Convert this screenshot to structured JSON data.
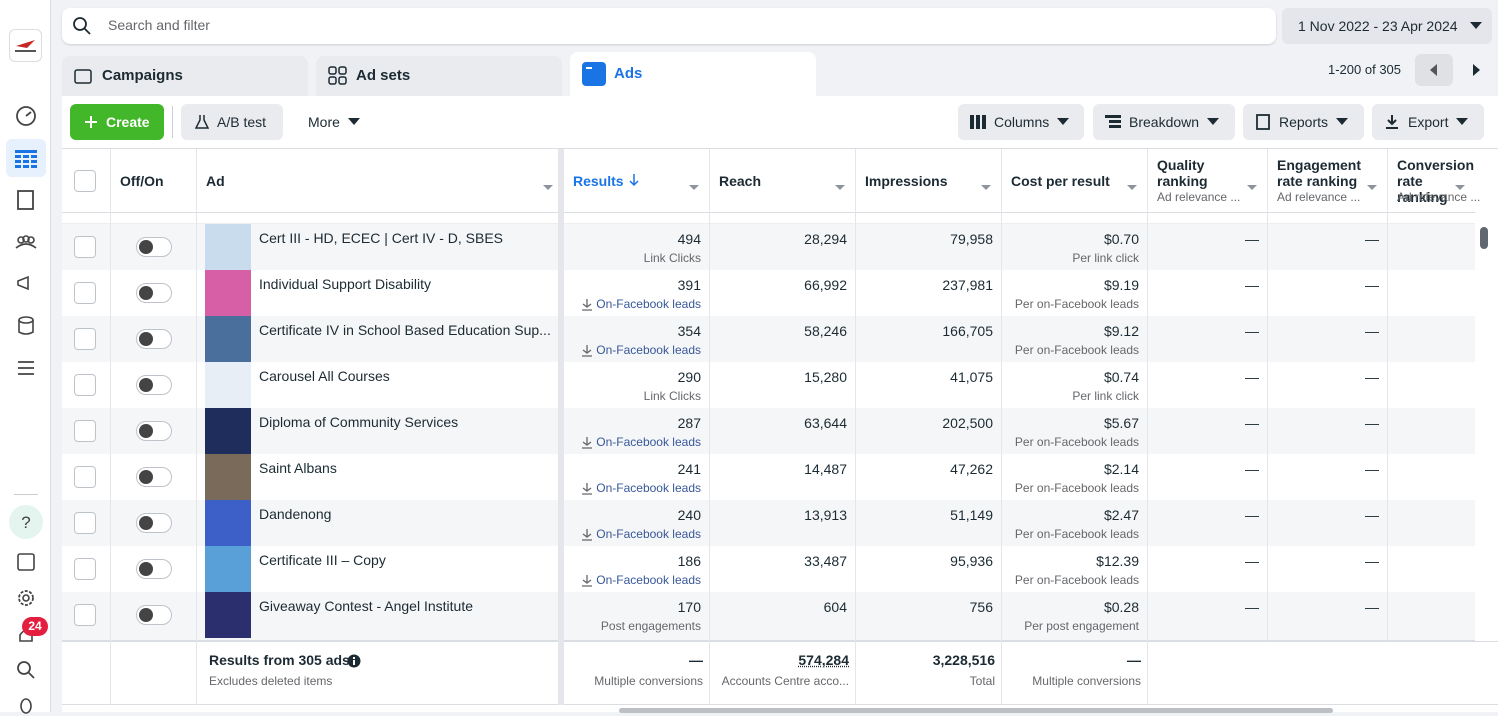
{
  "search_placeholder": "Search and filter",
  "date_range": "1 Nov 2022 - 23 Apr 2024",
  "tabs": [
    "Campaigns",
    "Ad sets",
    "Ads"
  ],
  "pagination": "1-200 of 305",
  "sidebar": {
    "notification_count": "24"
  },
  "toolbar": {
    "create": "Create",
    "ab_test": "A/B test",
    "more": "More",
    "columns": "Columns",
    "breakdown": "Breakdown",
    "reports": "Reports",
    "export": "Export"
  },
  "table": {
    "columns": [
      {
        "label": "Off/On"
      },
      {
        "label": "Ad"
      },
      {
        "label": "Results"
      },
      {
        "label": "Reach"
      },
      {
        "label": "Impressions"
      },
      {
        "label": "Cost per result"
      },
      {
        "label": "Quality ranking",
        "sublabel": "Ad relevance ..."
      },
      {
        "label": "Engagement rate ranking",
        "sublabel": "Ad relevance ..."
      },
      {
        "label": "Conversion rate ranking",
        "sublabel": "Ad relevance ..."
      }
    ],
    "rows": [
      {
        "ad": "Cert III - HD, ECEC | Cert IV - D, SBES",
        "results": "494",
        "result_type": "Link Clicks",
        "reach": "28,294",
        "impressions": "79,958",
        "cost_per_result": "$0.70",
        "cost_type": "Per link click",
        "quality_ranking": "—",
        "engagement_ranking": "—"
      },
      {
        "ad": "Individual Support Disability",
        "results": "391",
        "result_type": "On-Facebook leads",
        "reach": "66,992",
        "impressions": "237,981",
        "cost_per_result": "$9.19",
        "cost_type": "Per on-Facebook leads",
        "quality_ranking": "—",
        "engagement_ranking": "—"
      },
      {
        "ad": "Certificate IV in School Based Education Sup...",
        "results": "354",
        "result_type": "On-Facebook leads",
        "reach": "58,246",
        "impressions": "166,705",
        "cost_per_result": "$9.12",
        "cost_type": "Per on-Facebook leads",
        "quality_ranking": "—",
        "engagement_ranking": "—"
      },
      {
        "ad": "Carousel All Courses",
        "results": "290",
        "result_type": "Link Clicks",
        "reach": "15,280",
        "impressions": "41,075",
        "cost_per_result": "$0.74",
        "cost_type": "Per link click",
        "quality_ranking": "—",
        "engagement_ranking": "—"
      },
      {
        "ad": "Diploma of Community Services",
        "results": "287",
        "result_type": "On-Facebook leads",
        "reach": "63,644",
        "impressions": "202,500",
        "cost_per_result": "$5.67",
        "cost_type": "Per on-Facebook leads",
        "quality_ranking": "—",
        "engagement_ranking": "—"
      },
      {
        "ad": "Saint Albans",
        "results": "241",
        "result_type": "On-Facebook leads",
        "reach": "14,487",
        "impressions": "47,262",
        "cost_per_result": "$2.14",
        "cost_type": "Per on-Facebook leads",
        "quality_ranking": "—",
        "engagement_ranking": "—"
      },
      {
        "ad": "Dandenong",
        "results": "240",
        "result_type": "On-Facebook leads",
        "reach": "13,913",
        "impressions": "51,149",
        "cost_per_result": "$2.47",
        "cost_type": "Per on-Facebook leads",
        "quality_ranking": "—",
        "engagement_ranking": "—"
      },
      {
        "ad": "Certificate III – Copy",
        "results": "186",
        "result_type": "On-Facebook leads",
        "reach": "33,487",
        "impressions": "95,936",
        "cost_per_result": "$12.39",
        "cost_type": "Per on-Facebook leads",
        "quality_ranking": "—",
        "engagement_ranking": "—"
      },
      {
        "ad": "Giveaway Contest - Angel Institute",
        "results": "170",
        "result_type": "Post engagements",
        "reach": "604",
        "impressions": "756",
        "cost_per_result": "$0.28",
        "cost_type": "Per post engagement",
        "quality_ranking": "—",
        "engagement_ranking": "—"
      }
    ],
    "summary": {
      "title": "Results from 305 ads",
      "note": "Excludes deleted items",
      "results": "—",
      "results_type": "Multiple conversions",
      "reach": "574,284",
      "reach_note": "Accounts Centre acco...",
      "impressions": "3,228,516",
      "impressions_note": "Total",
      "cost_per_result": "—",
      "cost_note": "Multiple conversions"
    }
  }
}
